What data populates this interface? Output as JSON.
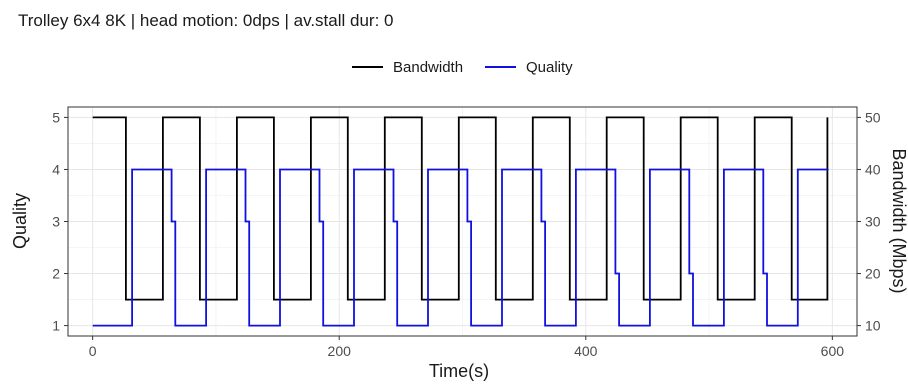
{
  "chart_data": {
    "type": "line",
    "title": "Trolley 6x4 8K | head motion:  0dps | av.stall dur: 0",
    "xlabel": "Time(s)",
    "ylabel_left": "Quality",
    "ylabel_right": "Bandwidth (Mbps)",
    "xlim": [
      -20,
      620
    ],
    "ylim_left": [
      0.8,
      5.2
    ],
    "ylim_right": [
      8,
      52
    ],
    "x_ticks": [
      0,
      200,
      400,
      600
    ],
    "y_ticks_left": [
      1,
      2,
      3,
      4,
      5
    ],
    "y_ticks_right": [
      10,
      20,
      30,
      40,
      50
    ],
    "grid": true,
    "legend_position": "top",
    "legend": [
      "Bandwidth",
      "Quality"
    ],
    "colors": {
      "Bandwidth": "#000000",
      "Quality": "#1010e0"
    },
    "series": [
      {
        "name": "Bandwidth",
        "axis": "right",
        "points": [
          [
            0,
            50
          ],
          [
            27,
            50
          ],
          [
            27,
            15
          ],
          [
            57,
            15
          ],
          [
            57,
            50
          ],
          [
            87,
            50
          ],
          [
            87,
            15
          ],
          [
            117,
            15
          ],
          [
            117,
            50
          ],
          [
            147,
            50
          ],
          [
            147,
            15
          ],
          [
            177,
            15
          ],
          [
            177,
            50
          ],
          [
            207,
            50
          ],
          [
            207,
            15
          ],
          [
            237,
            15
          ],
          [
            237,
            50
          ],
          [
            267,
            50
          ],
          [
            267,
            15
          ],
          [
            297,
            15
          ],
          [
            297,
            50
          ],
          [
            327,
            50
          ],
          [
            327,
            15
          ],
          [
            357,
            15
          ],
          [
            357,
            50
          ],
          [
            387,
            50
          ],
          [
            387,
            15
          ],
          [
            417,
            15
          ],
          [
            417,
            50
          ],
          [
            447,
            50
          ],
          [
            447,
            15
          ],
          [
            477,
            15
          ],
          [
            477,
            50
          ],
          [
            507,
            50
          ],
          [
            507,
            15
          ],
          [
            537,
            15
          ],
          [
            537,
            50
          ],
          [
            567,
            50
          ],
          [
            567,
            15
          ],
          [
            596,
            15
          ],
          [
            596,
            50
          ]
        ]
      },
      {
        "name": "Quality",
        "axis": "left",
        "points": [
          [
            0,
            1
          ],
          [
            32,
            1
          ],
          [
            32,
            4
          ],
          [
            64,
            4
          ],
          [
            64,
            3
          ],
          [
            67,
            3
          ],
          [
            67,
            1
          ],
          [
            92,
            1
          ],
          [
            92,
            4
          ],
          [
            124,
            4
          ],
          [
            124,
            3
          ],
          [
            127,
            3
          ],
          [
            127,
            1
          ],
          [
            152,
            1
          ],
          [
            152,
            4
          ],
          [
            184,
            4
          ],
          [
            184,
            3
          ],
          [
            187,
            3
          ],
          [
            187,
            1
          ],
          [
            212,
            1
          ],
          [
            212,
            4
          ],
          [
            244,
            4
          ],
          [
            244,
            3
          ],
          [
            247,
            3
          ],
          [
            247,
            1
          ],
          [
            272,
            1
          ],
          [
            272,
            4
          ],
          [
            304,
            4
          ],
          [
            304,
            3
          ],
          [
            307,
            3
          ],
          [
            307,
            1
          ],
          [
            332,
            1
          ],
          [
            332,
            4
          ],
          [
            364,
            4
          ],
          [
            364,
            3
          ],
          [
            367,
            3
          ],
          [
            367,
            1
          ],
          [
            392,
            1
          ],
          [
            392,
            4
          ],
          [
            424,
            4
          ],
          [
            424,
            2
          ],
          [
            427,
            2
          ],
          [
            427,
            1
          ],
          [
            452,
            1
          ],
          [
            452,
            4
          ],
          [
            484,
            4
          ],
          [
            484,
            2
          ],
          [
            487,
            2
          ],
          [
            487,
            1
          ],
          [
            512,
            1
          ],
          [
            512,
            4
          ],
          [
            544,
            4
          ],
          [
            544,
            2
          ],
          [
            547,
            2
          ],
          [
            547,
            1
          ],
          [
            572,
            1
          ],
          [
            572,
            4
          ],
          [
            597,
            4
          ]
        ]
      }
    ]
  }
}
